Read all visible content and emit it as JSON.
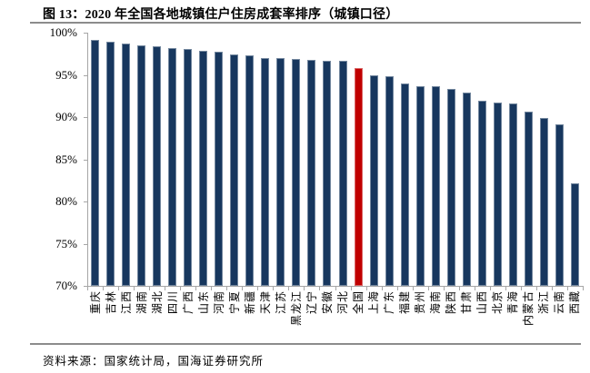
{
  "header": {
    "label": "图 13："
  },
  "footer": {
    "source": "资料来源：国家统计局，国海证券研究所"
  },
  "chart_data": {
    "type": "bar",
    "title": "2020 年全国各地城镇住户住房成套率排序（城镇口径）",
    "categories": [
      "重庆",
      "吉林",
      "江西",
      "湖南",
      "湖北",
      "四川",
      "广西",
      "山东",
      "河南",
      "宁夏",
      "新疆",
      "天津",
      "江苏",
      "黑龙江",
      "辽宁",
      "安徽",
      "河北",
      "全国",
      "上海",
      "广东",
      "福建",
      "贵州",
      "海南",
      "陕西",
      "甘肃",
      "山西",
      "北京",
      "青海",
      "内蒙古",
      "浙江",
      "云南",
      "西藏"
    ],
    "values": [
      99.1,
      98.9,
      98.7,
      98.5,
      98.4,
      98.2,
      98.1,
      97.8,
      97.7,
      97.4,
      97.3,
      97.0,
      97.0,
      96.9,
      96.8,
      96.7,
      96.7,
      95.8,
      95.0,
      94.8,
      94.0,
      93.7,
      93.7,
      93.3,
      92.9,
      91.9,
      91.7,
      91.6,
      90.6,
      89.9,
      89.1,
      82.1
    ],
    "unit": "%",
    "ylim": [
      70,
      100
    ],
    "ytick_step": 5,
    "ytick_labels": [
      "100%",
      "95%",
      "90%",
      "85%",
      "80%",
      "75%",
      "70%"
    ],
    "grid": false,
    "legend": "none",
    "xlabel_rotation": -90,
    "highlight_index": 17,
    "colors": {
      "bar": "#17375E",
      "highlight": "#C00000",
      "axis": "#A6A6A6",
      "divider": "#8C8C8C",
      "text": "#000000"
    }
  }
}
